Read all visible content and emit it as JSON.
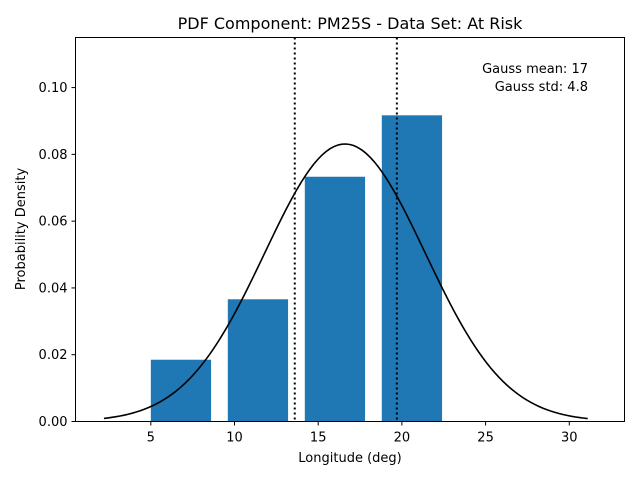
{
  "chart_data": {
    "type": "bar",
    "title": "PDF Component: PM25S - Data Set: At Risk",
    "xlabel": "Longitude (deg)",
    "ylabel": "Probability Density",
    "xlim": [
      0.5,
      33.3
    ],
    "ylim": [
      0,
      0.115
    ],
    "xticks": [
      5,
      10,
      15,
      20,
      25,
      30
    ],
    "yticks": [
      0.0,
      0.02,
      0.04,
      0.06,
      0.08,
      0.1
    ],
    "ytick_labels": [
      "0.00",
      "0.02",
      "0.04",
      "0.06",
      "0.08",
      "0.10"
    ],
    "bars": [
      {
        "x0": 5.0,
        "x1": 8.6,
        "value": 0.0185
      },
      {
        "x0": 9.6,
        "x1": 13.2,
        "value": 0.0366
      },
      {
        "x0": 14.2,
        "x1": 17.8,
        "value": 0.0733
      },
      {
        "x0": 18.8,
        "x1": 22.4,
        "value": 0.0917
      }
    ],
    "bar_color": "#1f77b4",
    "gaussian_curve": {
      "mean": 16.6,
      "std": 4.8,
      "xrange": [
        2.2,
        31.1
      ],
      "color": "#000000"
    },
    "vlines": [
      13.6,
      19.7
    ],
    "annotations": [
      "Gauss mean: 17",
      "Gauss std: 4.8"
    ],
    "grid": false
  }
}
